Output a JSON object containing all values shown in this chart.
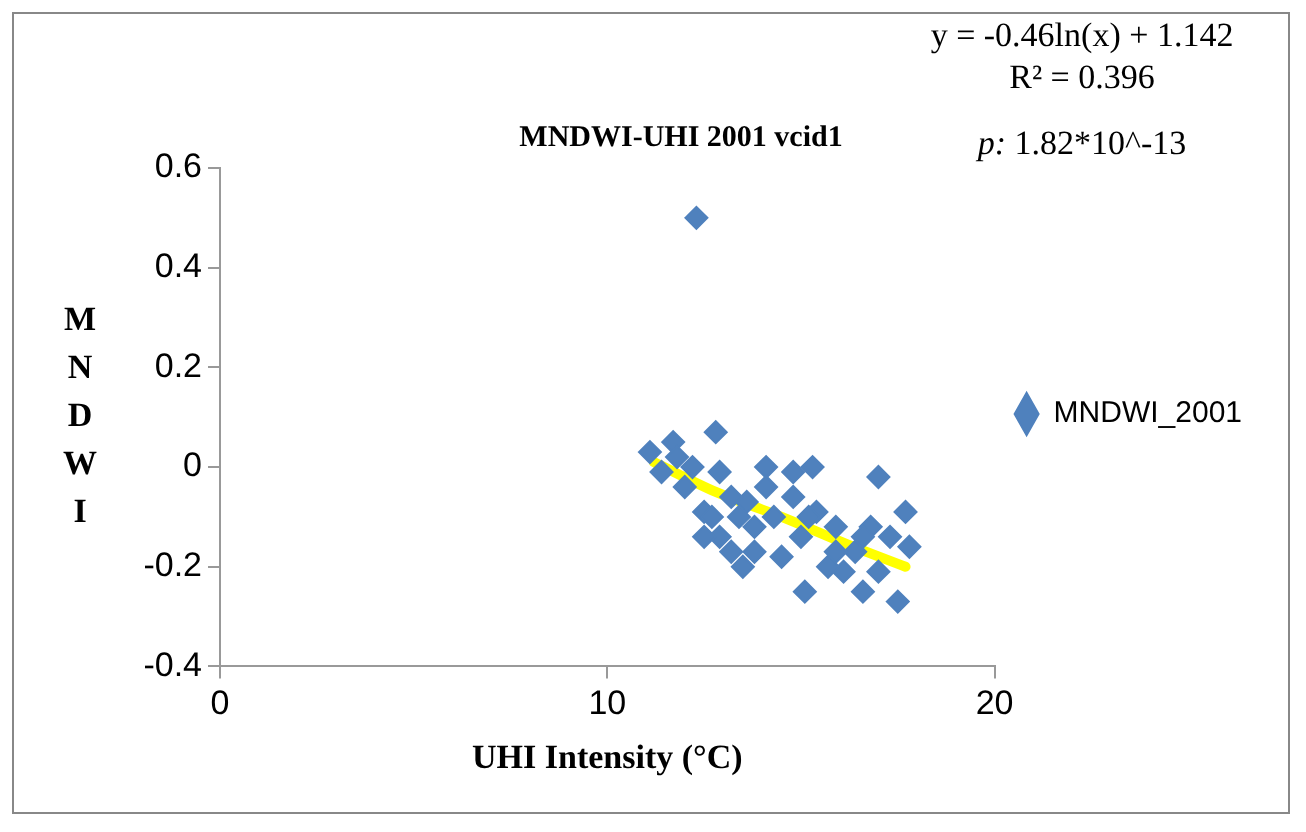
{
  "chart_data": {
    "type": "scatter",
    "title": "MNDWI-UHI 2001 vcid1",
    "xlabel": "UHI Intensity (°C)",
    "ylabel": "MNDWI",
    "xlim": [
      0,
      20
    ],
    "xticks": [
      0,
      10,
      20
    ],
    "ylim": [
      -0.4,
      0.6
    ],
    "yticks": [
      -0.4,
      -0.2,
      0,
      0.2,
      0.4,
      0.6
    ],
    "grid": false,
    "legend": "right",
    "marker": "diamond",
    "annotations": [
      "y = -0.46ln(x) + 1.142",
      "R² = 0.396",
      "p: 1.82*10^-13"
    ],
    "series": [
      {
        "name": "MNDWI_2001",
        "color": "#4f81bd",
        "x": [
          12.3,
          11.1,
          11.7,
          12.8,
          11.4,
          12.0,
          12.5,
          12.9,
          13.5,
          14.1,
          14.8,
          15.3,
          14.1,
          13.8,
          14.5,
          15.1,
          15.4,
          15.9,
          16.1,
          16.6,
          17.0,
          17.7,
          17.8,
          17.5,
          17.0,
          16.8,
          16.4,
          15.7,
          15.0,
          14.3,
          13.6,
          13.2,
          12.9,
          13.4,
          12.7,
          13.8,
          14.8,
          15.2,
          15.9,
          16.6,
          17.3,
          12.2,
          11.8,
          12.5,
          13.2
        ],
        "values": [
          0.5,
          0.03,
          0.05,
          0.07,
          -0.01,
          -0.04,
          -0.09,
          -0.14,
          -0.2,
          0.0,
          -0.01,
          0.0,
          -0.04,
          -0.17,
          -0.18,
          -0.25,
          -0.09,
          -0.12,
          -0.21,
          -0.25,
          -0.02,
          -0.09,
          -0.16,
          -0.27,
          -0.21,
          -0.12,
          -0.17,
          -0.2,
          -0.14,
          -0.1,
          -0.07,
          -0.06,
          -0.01,
          -0.1,
          -0.1,
          -0.12,
          -0.06,
          -0.1,
          -0.17,
          -0.14,
          -0.14,
          0.0,
          0.02,
          -0.14,
          -0.17
        ]
      },
      {
        "type": "line",
        "color": "#ffff00",
        "marker": "none",
        "x": [
          11.2,
          12.8,
          14.5,
          16.2,
          17.7
        ],
        "values": [
          0.01,
          -0.05,
          -0.1,
          -0.155,
          -0.2
        ]
      }
    ]
  }
}
